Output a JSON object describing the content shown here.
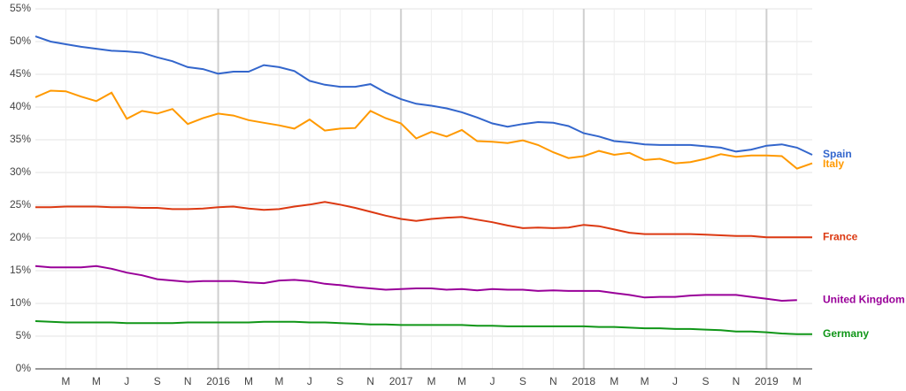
{
  "chart_data": {
    "type": "line",
    "categories": [
      null,
      null,
      "M",
      null,
      "M",
      null,
      "J",
      null,
      "S",
      null,
      "N",
      null,
      "2016",
      null,
      "M",
      null,
      "M",
      null,
      "J",
      null,
      "S",
      null,
      "N",
      null,
      "2017",
      null,
      "M",
      null,
      "M",
      null,
      "J",
      null,
      "S",
      null,
      "N",
      null,
      "2018",
      null,
      "M",
      null,
      "M",
      null,
      "J",
      null,
      "S",
      null,
      "N",
      null,
      "2019",
      null,
      "M",
      null
    ],
    "ylim": [
      0,
      55
    ],
    "yticks": [
      {
        "value": 0,
        "label": "0%"
      },
      {
        "value": 5,
        "label": "5%"
      },
      {
        "value": 10,
        "label": "10%"
      },
      {
        "value": 15,
        "label": "15%"
      },
      {
        "value": 20,
        "label": "20%"
      },
      {
        "value": 25,
        "label": "25%"
      },
      {
        "value": 30,
        "label": "30%"
      },
      {
        "value": 35,
        "label": "35%"
      },
      {
        "value": 40,
        "label": "40%"
      },
      {
        "value": 45,
        "label": "45%"
      },
      {
        "value": 50,
        "label": "50%"
      },
      {
        "value": 55,
        "label": "55%"
      }
    ],
    "grid": true,
    "series": [
      {
        "name": "Spain",
        "color": "#3366cc",
        "values": [
          50.8,
          50.0,
          49.6,
          49.2,
          48.9,
          48.6,
          48.5,
          48.3,
          47.6,
          47.0,
          46.1,
          45.8,
          45.1,
          45.4,
          45.4,
          46.4,
          46.1,
          45.5,
          44.0,
          43.4,
          43.1,
          43.1,
          43.5,
          42.2,
          41.2,
          40.5,
          40.2,
          39.8,
          39.2,
          38.4,
          37.5,
          37.0,
          37.4,
          37.7,
          37.6,
          37.1,
          36.0,
          35.5,
          34.8,
          34.6,
          34.3,
          34.2,
          34.2,
          34.2,
          34.0,
          33.8,
          33.2,
          33.5,
          34.1,
          34.3,
          33.8,
          32.7
        ]
      },
      {
        "name": "Italy",
        "color": "#ff9900",
        "values": [
          41.5,
          42.5,
          42.4,
          41.6,
          40.9,
          42.2,
          38.2,
          39.4,
          39.0,
          39.7,
          37.4,
          38.3,
          39.0,
          38.7,
          38.0,
          37.6,
          37.2,
          36.7,
          38.1,
          36.4,
          36.7,
          36.8,
          39.4,
          38.3,
          37.5,
          35.2,
          36.2,
          35.5,
          36.5,
          34.8,
          34.7,
          34.5,
          34.9,
          34.2,
          33.1,
          32.2,
          32.5,
          33.3,
          32.7,
          33.0,
          31.9,
          32.1,
          31.4,
          31.6,
          32.1,
          32.8,
          32.4,
          32.6,
          32.6,
          32.5,
          30.6,
          31.4
        ]
      },
      {
        "name": "France",
        "color": "#dc3912",
        "values": [
          24.7,
          24.7,
          24.8,
          24.8,
          24.8,
          24.7,
          24.7,
          24.6,
          24.6,
          24.4,
          24.4,
          24.5,
          24.7,
          24.8,
          24.5,
          24.3,
          24.4,
          24.8,
          25.1,
          25.5,
          25.1,
          24.6,
          24.0,
          23.4,
          22.9,
          22.6,
          22.9,
          23.1,
          23.2,
          22.8,
          22.4,
          21.9,
          21.5,
          21.6,
          21.5,
          21.6,
          22.0,
          21.8,
          21.3,
          20.8,
          20.6,
          20.6,
          20.6,
          20.6,
          20.5,
          20.4,
          20.3,
          20.3,
          20.1,
          20.1,
          20.1,
          20.1
        ]
      },
      {
        "name": "United Kingdom",
        "color": "#990099",
        "values": [
          15.7,
          15.5,
          15.5,
          15.5,
          15.7,
          15.3,
          14.7,
          14.3,
          13.7,
          13.5,
          13.3,
          13.4,
          13.4,
          13.4,
          13.2,
          13.1,
          13.5,
          13.6,
          13.4,
          13.0,
          12.8,
          12.5,
          12.3,
          12.1,
          12.2,
          12.3,
          12.3,
          12.1,
          12.2,
          12.0,
          12.2,
          12.1,
          12.1,
          11.9,
          12.0,
          11.9,
          11.9,
          11.9,
          11.6,
          11.3,
          10.9,
          11.0,
          11.0,
          11.2,
          11.3,
          11.3,
          11.3,
          11.0,
          10.7,
          10.4,
          10.5,
          null
        ]
      },
      {
        "name": "Germany",
        "color": "#109618",
        "values": [
          7.3,
          7.2,
          7.1,
          7.1,
          7.1,
          7.1,
          7.0,
          7.0,
          7.0,
          7.0,
          7.1,
          7.1,
          7.1,
          7.1,
          7.1,
          7.2,
          7.2,
          7.2,
          7.1,
          7.1,
          7.0,
          6.9,
          6.8,
          6.8,
          6.7,
          6.7,
          6.7,
          6.7,
          6.7,
          6.6,
          6.6,
          6.5,
          6.5,
          6.5,
          6.5,
          6.5,
          6.5,
          6.4,
          6.4,
          6.3,
          6.2,
          6.2,
          6.1,
          6.1,
          6.0,
          5.9,
          5.7,
          5.7,
          5.6,
          5.4,
          5.3,
          5.3
        ]
      }
    ]
  }
}
